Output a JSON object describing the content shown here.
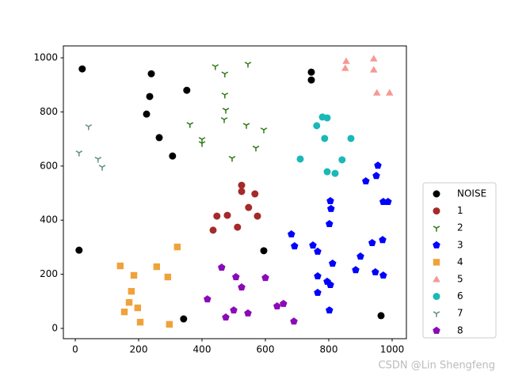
{
  "chart_data": {
    "type": "scatter",
    "xlim": [
      -37.5,
      1045
    ],
    "ylim": [
      -38,
      1044
    ],
    "xticks": [
      0,
      200,
      400,
      600,
      800,
      1000
    ],
    "yticks": [
      0,
      200,
      400,
      600,
      800,
      1000
    ],
    "grid": false,
    "legend": "lower right",
    "watermark": "CSDN @Lin Shengfeng",
    "series": [
      {
        "name": "NOISE",
        "color": "#000000",
        "marker": "circle",
        "x": [
          22,
          240,
          235,
          225,
          352,
          265,
          307,
          745,
          745,
          12,
          595,
          342,
          965
        ],
        "y": [
          959,
          941,
          857,
          792,
          880,
          705,
          637,
          947,
          918,
          289,
          287,
          35,
          47
        ]
      },
      {
        "name": "1",
        "color": "#a52a2a",
        "marker": "circle",
        "x": [
          525,
          525,
          567,
          447,
          480,
          547,
          512,
          575,
          435
        ],
        "y": [
          529,
          506,
          497,
          415,
          418,
          447,
          374,
          415,
          363
        ]
      },
      {
        "name": "2",
        "color": "#2d7a12",
        "marker": "tri_down",
        "x": [
          442,
          472,
          545,
          472,
          475,
          470,
          362,
          400,
          400,
          540,
          595,
          570,
          495
        ],
        "y": [
          968,
          941,
          977,
          863,
          807,
          772,
          754,
          699,
          684,
          751,
          734,
          667,
          629
        ]
      },
      {
        "name": "3",
        "color": "#0000ff",
        "marker": "pentagon",
        "x": [
          955,
          950,
          917,
          805,
          972,
          987,
          807,
          802,
          682,
          692,
          750,
          765,
          937,
          970,
          900,
          812,
          885,
          947,
          972,
          765,
          795,
          805,
          765,
          802
        ],
        "y": [
          602,
          564,
          544,
          471,
          468,
          468,
          442,
          386,
          348,
          304,
          307,
          284,
          316,
          327,
          266,
          240,
          216,
          208,
          196,
          193,
          173,
          161,
          132,
          67
        ]
      },
      {
        "name": "4",
        "color": "#f0a23a",
        "marker": "square",
        "x": [
          322,
          142,
          257,
          185,
          292,
          177,
          170,
          197,
          155,
          205,
          297
        ],
        "y": [
          301,
          231,
          228,
          196,
          190,
          137,
          96,
          76,
          61,
          23,
          15
        ]
      },
      {
        "name": "5",
        "color": "#f79892",
        "marker": "triangle_up",
        "x": [
          855,
          942,
          852,
          942,
          952,
          992
        ],
        "y": [
          988,
          997,
          962,
          956,
          871,
          871
        ]
      },
      {
        "name": "6",
        "color": "#1bb8b8",
        "marker": "circle",
        "x": [
          780,
          795,
          762,
          787,
          870,
          842,
          710,
          795,
          820
        ],
        "y": [
          781,
          778,
          749,
          702,
          702,
          623,
          626,
          579,
          573
        ]
      },
      {
        "name": "7",
        "color": "#5f8f87",
        "marker": "tri_down",
        "x": [
          42,
          12,
          72,
          85
        ],
        "y": [
          746,
          649,
          626,
          596
        ]
      },
      {
        "name": "8",
        "color": "#8b0ab8",
        "marker": "pentagon",
        "x": [
          462,
          507,
          600,
          525,
          417,
          500,
          475,
          545,
          637,
          657,
          690
        ],
        "y": [
          225,
          190,
          187,
          152,
          108,
          67,
          41,
          56,
          82,
          91,
          26
        ]
      }
    ]
  }
}
